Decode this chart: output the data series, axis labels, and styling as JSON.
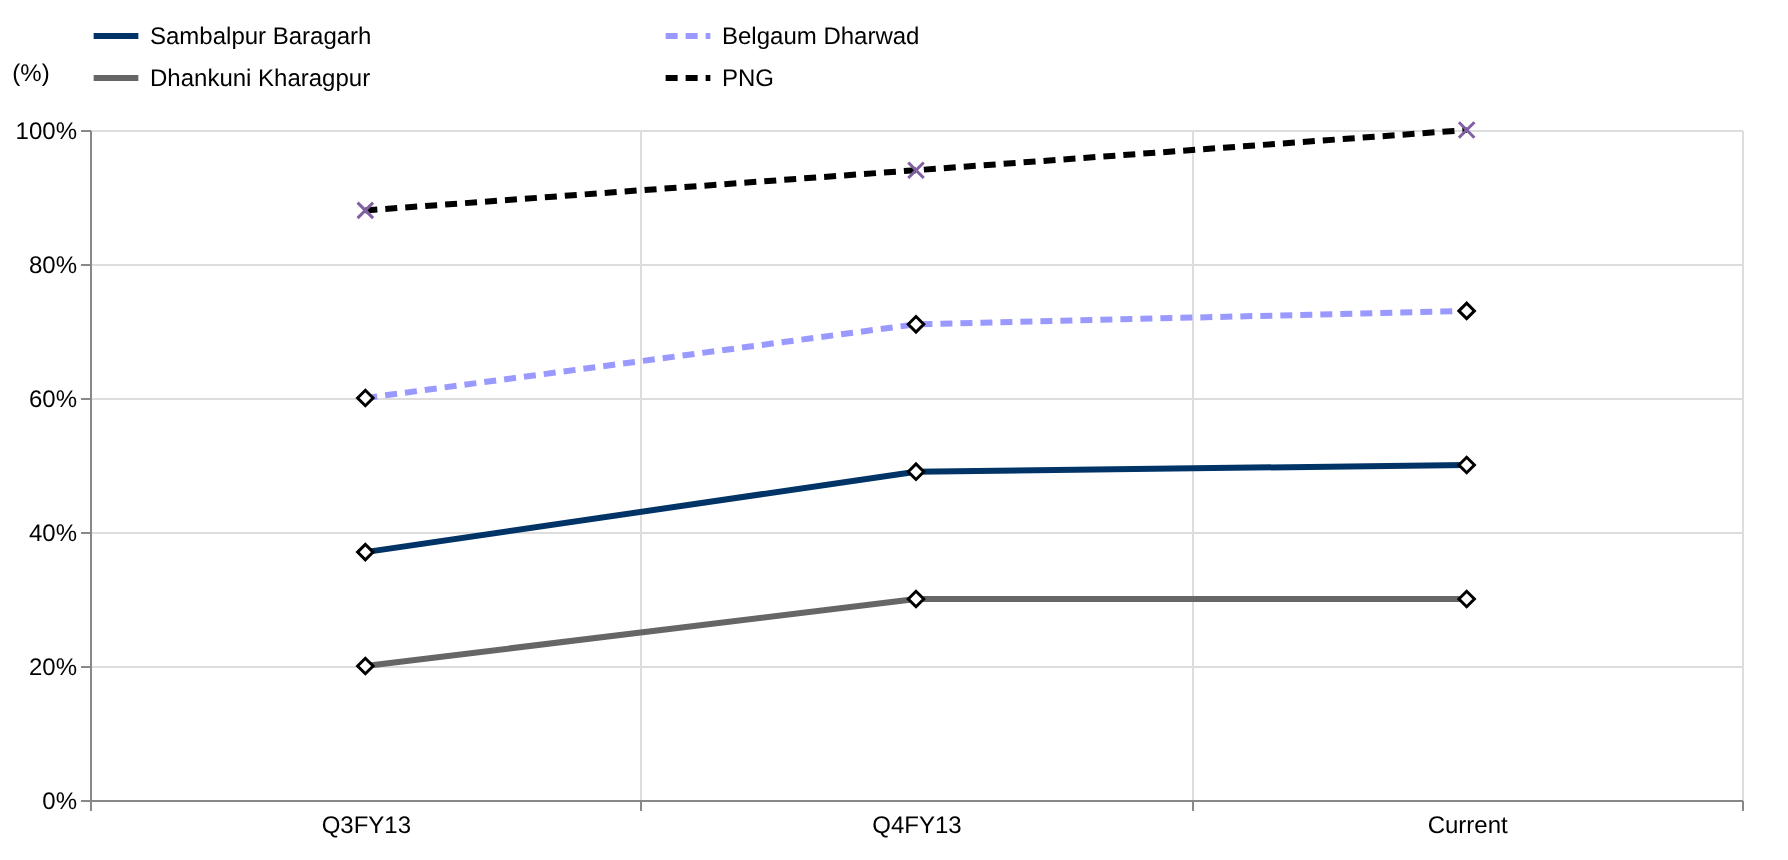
{
  "chart_data": {
    "type": "line",
    "ylabel": "(%)",
    "categories": [
      "Q3FY13",
      "Q4FY13",
      "Current"
    ],
    "series": [
      {
        "name": "Sambalpur Baragarh",
        "color": "#003366",
        "values": [
          37,
          49,
          50
        ],
        "marker": "diamond",
        "line_style": "solid"
      },
      {
        "name": "Belgaum Dharwad",
        "color": "#9999ff",
        "values": [
          60,
          71,
          73
        ],
        "marker": "diamond",
        "line_style": "dashed"
      },
      {
        "name": "Dhankuni Kharagpur",
        "color": "#666666",
        "values": [
          20,
          30,
          30
        ],
        "marker": "diamond",
        "line_style": "solid"
      },
      {
        "name": "PNG",
        "color": "#000000",
        "values": [
          88,
          94,
          100
        ],
        "marker": "cross",
        "line_style": "dashed"
      }
    ],
    "ylim": [
      0,
      100
    ],
    "yticks": [
      {
        "value": 0,
        "label": "0%"
      },
      {
        "value": 20,
        "label": "20%"
      },
      {
        "value": 40,
        "label": "40%"
      },
      {
        "value": 60,
        "label": "60%"
      },
      {
        "value": 80,
        "label": "80%"
      },
      {
        "value": 100,
        "label": "100%"
      }
    ],
    "grid": true,
    "legend": "top"
  }
}
